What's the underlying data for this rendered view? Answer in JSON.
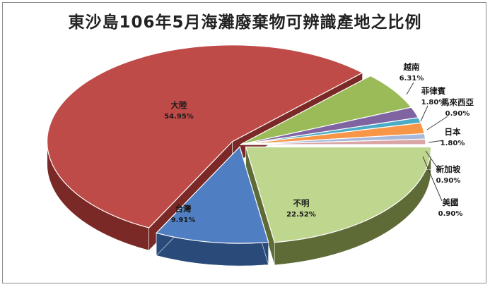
{
  "chart_data": {
    "type": "pie",
    "title": "東沙島106年5月海灘廢棄物可辨識產地之比例",
    "legend": "none",
    "slices": [
      {
        "label": "不明",
        "value": 22.52,
        "value_label": "22.52%",
        "color": "#bfd68e",
        "side_color": "#5e6b37"
      },
      {
        "label": "台灣",
        "value": 9.91,
        "value_label": "9.91%",
        "color": "#4f7fc2",
        "side_color": "#2a4a7a"
      },
      {
        "label": "大陸",
        "value": 54.95,
        "value_label": "54.95%",
        "color": "#be4b48",
        "side_color": "#7a2926"
      },
      {
        "label": "越南",
        "value": 6.31,
        "value_label": "6.31%",
        "color": "#9bbb59",
        "side_color": "#5a7030"
      },
      {
        "label": "菲律賓",
        "value": 1.8,
        "value_label": "1.80%",
        "color": "#8064a2",
        "side_color": "#4b3a62"
      },
      {
        "label": "馬來西亞",
        "value": 0.9,
        "value_label": "0.90%",
        "color": "#4bacc6",
        "side_color": "#2b6878"
      },
      {
        "label": "日本",
        "value": 1.8,
        "value_label": "1.80%",
        "color": "#f79646",
        "side_color": "#a35a1e"
      },
      {
        "label": "新加坡",
        "value": 0.9,
        "value_label": "0.90%",
        "color": "#a9b9dc",
        "side_color": "#6877a0"
      },
      {
        "label": "美國",
        "value": 0.9,
        "value_label": "0.90%",
        "color": "#d9a6a5",
        "side_color": "#9b6564"
      }
    ]
  }
}
